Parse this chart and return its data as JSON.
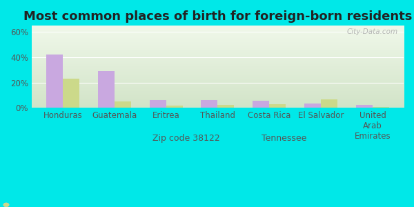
{
  "title": "Most common places of birth for foreign-born residents",
  "categories": [
    "Honduras",
    "Guatemala",
    "Eritrea",
    "Thailand",
    "Costa Rica",
    "El Salvador",
    "United\nArab\nEmirates"
  ],
  "zip_values": [
    42,
    29,
    6,
    6,
    5.5,
    3.5,
    2.5
  ],
  "tn_values": [
    23,
    5,
    1.5,
    2.5,
    3,
    6.5,
    0.5
  ],
  "zip_color": "#c9a8e0",
  "tn_color": "#ccd98a",
  "background_outer": "#00e8e8",
  "background_inner": "#e8f2e0",
  "ylim": [
    0,
    65
  ],
  "yticks": [
    0,
    20,
    40,
    60
  ],
  "ytick_labels": [
    "0%",
    "20%",
    "40%",
    "60%"
  ],
  "legend_zip_label": "Zip code 38122",
  "legend_tn_label": "Tennessee",
  "watermark": "City-Data.com",
  "title_fontsize": 13,
  "tick_fontsize": 8.5,
  "legend_fontsize": 9,
  "bar_width": 0.32
}
